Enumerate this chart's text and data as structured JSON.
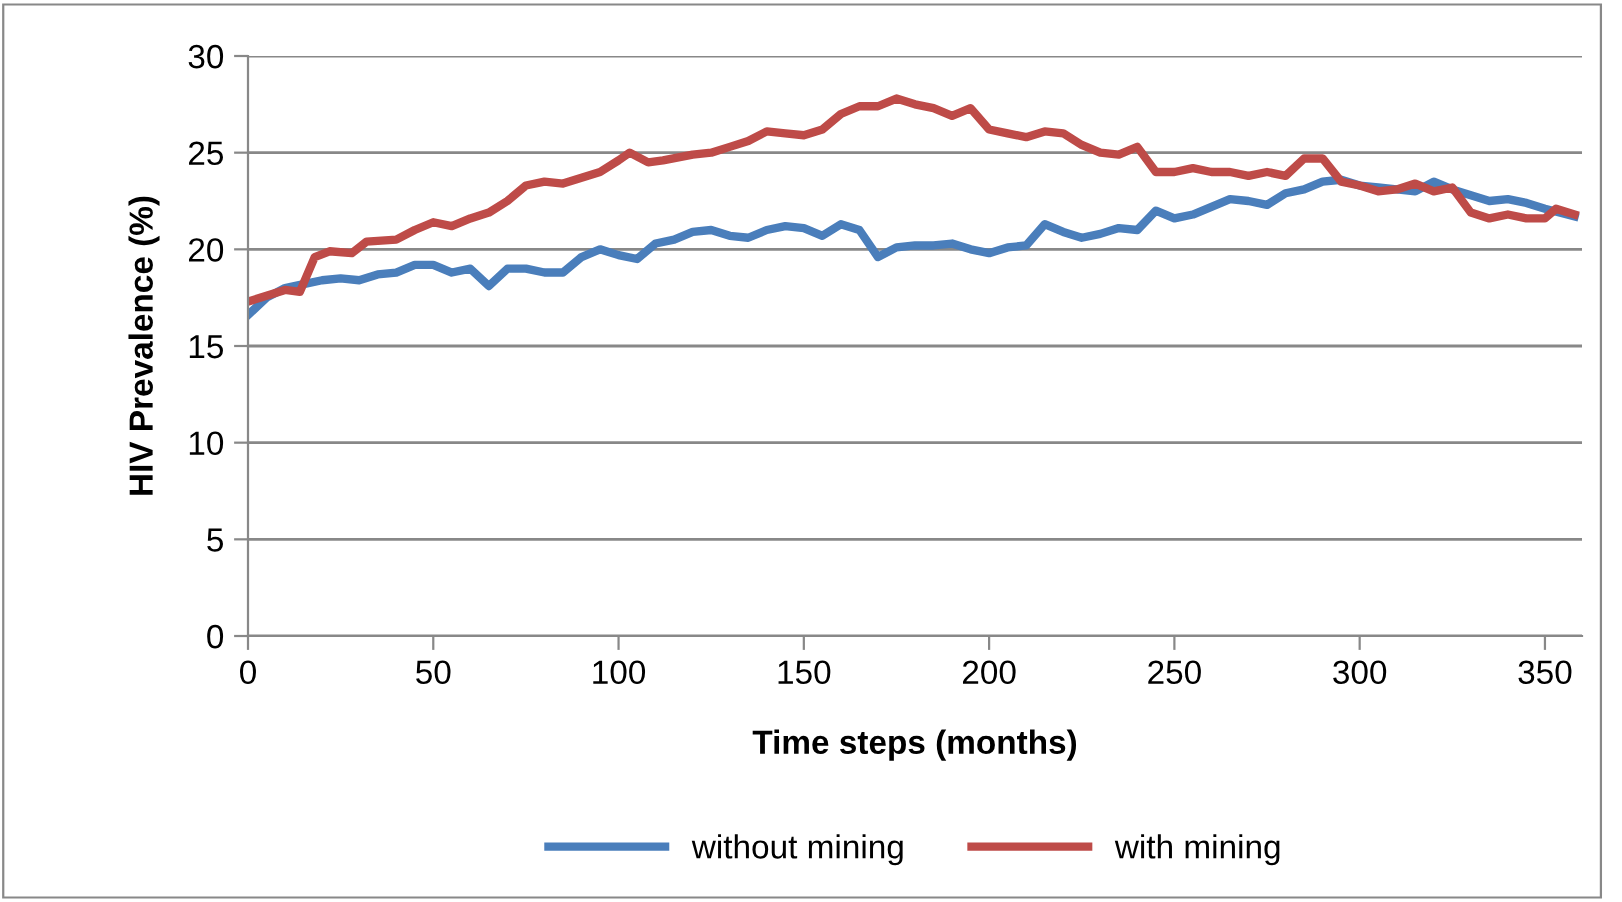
{
  "chart_data": {
    "type": "line",
    "xlabel": "Time steps (months)",
    "ylabel": "HIV Prevalence (%)",
    "xlim": [
      0,
      360
    ],
    "xticks": [
      0,
      50,
      100,
      150,
      200,
      250,
      300,
      350
    ],
    "ylim": [
      0,
      30
    ],
    "yticks": [
      0,
      5,
      10,
      15,
      20,
      25,
      30
    ],
    "grid": "y",
    "legend": "bottom",
    "marker": "none",
    "line_style": "solid",
    "series": [
      {
        "name": "without mining",
        "color": "#4a7ebb",
        "x": [
          0,
          5,
          10,
          15,
          20,
          25,
          30,
          35,
          40,
          45,
          50,
          55,
          60,
          65,
          70,
          75,
          80,
          85,
          90,
          95,
          100,
          105,
          110,
          115,
          120,
          125,
          130,
          135,
          140,
          145,
          150,
          155,
          160,
          165,
          170,
          175,
          180,
          185,
          190,
          195,
          200,
          205,
          210,
          215,
          220,
          225,
          230,
          235,
          240,
          245,
          250,
          255,
          260,
          265,
          270,
          275,
          280,
          285,
          290,
          295,
          300,
          305,
          310,
          315,
          320,
          325,
          330,
          335,
          340,
          345,
          350,
          358
        ],
        "values": [
          16.6,
          17.5,
          18.0,
          18.2,
          18.4,
          18.5,
          18.4,
          18.7,
          18.8,
          19.2,
          19.2,
          18.8,
          19.0,
          18.1,
          19.0,
          19.0,
          18.8,
          18.8,
          19.6,
          20.0,
          19.7,
          19.5,
          20.3,
          20.5,
          20.9,
          21.0,
          20.7,
          20.6,
          21.0,
          21.2,
          21.1,
          20.7,
          21.3,
          21.0,
          19.6,
          20.1,
          20.2,
          20.2,
          20.3,
          20.0,
          19.8,
          20.1,
          20.2,
          21.3,
          20.9,
          20.6,
          20.8,
          21.1,
          21.0,
          22.0,
          21.6,
          21.8,
          22.2,
          22.6,
          22.5,
          22.3,
          22.9,
          23.1,
          23.5,
          23.6,
          23.3,
          23.2,
          23.1,
          23.0,
          23.5,
          23.1,
          22.8,
          22.5,
          22.6,
          22.4,
          22.1,
          21.7
        ]
      },
      {
        "name": "with mining",
        "color": "#be4b48",
        "x": [
          0,
          5,
          10,
          14,
          18,
          22,
          28,
          32,
          40,
          45,
          50,
          55,
          60,
          65,
          70,
          75,
          80,
          85,
          90,
          95,
          100,
          103,
          108,
          112,
          120,
          125,
          130,
          135,
          140,
          145,
          150,
          155,
          160,
          165,
          170,
          175,
          180,
          185,
          190,
          195,
          200,
          205,
          210,
          215,
          220,
          225,
          230,
          235,
          240,
          245,
          250,
          255,
          260,
          265,
          270,
          275,
          280,
          285,
          290,
          295,
          300,
          305,
          310,
          315,
          320,
          325,
          330,
          335,
          340,
          345,
          350,
          353,
          358
        ],
        "values": [
          17.3,
          17.6,
          17.9,
          17.8,
          19.6,
          19.9,
          19.8,
          20.4,
          20.5,
          21.0,
          21.4,
          21.2,
          21.6,
          21.9,
          22.5,
          23.3,
          23.5,
          23.4,
          23.7,
          24.0,
          24.6,
          25.0,
          24.5,
          24.6,
          24.9,
          25.0,
          25.3,
          25.6,
          26.1,
          26.0,
          25.9,
          26.2,
          27.0,
          27.4,
          27.4,
          27.8,
          27.5,
          27.3,
          26.9,
          27.3,
          26.2,
          26.0,
          25.8,
          26.1,
          26.0,
          25.4,
          25.0,
          24.9,
          25.3,
          24.0,
          24.0,
          24.2,
          24.0,
          24.0,
          23.8,
          24.0,
          23.8,
          24.7,
          24.7,
          23.5,
          23.3,
          23.0,
          23.1,
          23.4,
          23.0,
          23.2,
          21.9,
          21.6,
          21.8,
          21.6,
          21.6,
          22.1,
          21.8
        ]
      }
    ]
  }
}
